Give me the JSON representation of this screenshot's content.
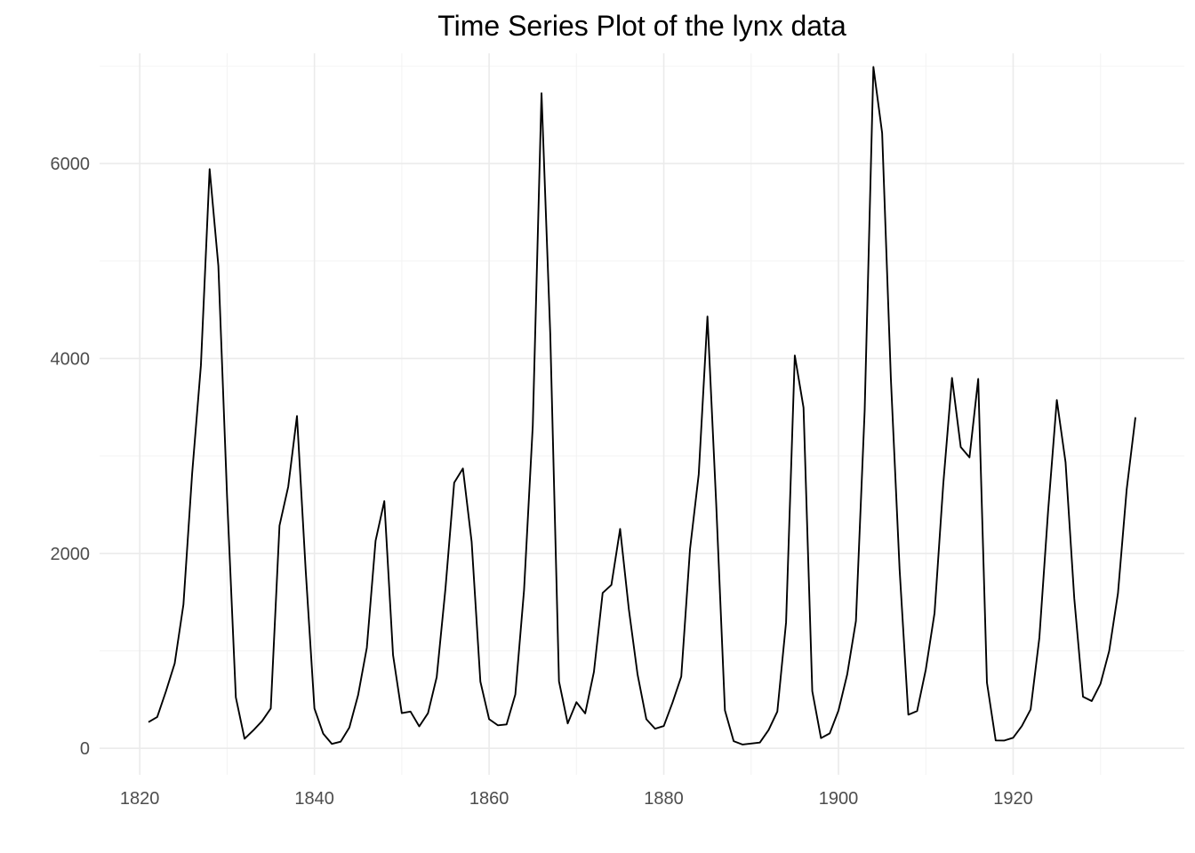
{
  "chart_data": {
    "type": "line",
    "title": "Time Series Plot of the lynx data",
    "xlabel": "",
    "ylabel": "",
    "xlim": [
      1815.4,
      1939.6
    ],
    "ylim": [
      -272,
      7131
    ],
    "x_ticks": [
      1820,
      1840,
      1860,
      1880,
      1900,
      1920
    ],
    "x_tick_labels": [
      "1820",
      "1840",
      "1860",
      "1880",
      "1900",
      "1920"
    ],
    "y_ticks": [
      0,
      2000,
      4000,
      6000
    ],
    "y_tick_labels": [
      "0",
      "2000",
      "4000",
      "6000"
    ],
    "grid": true,
    "legend": "none",
    "line_color": "#000000",
    "series": [
      {
        "x_start": 1821,
        "x_step": 1,
        "values": [
          269,
          321,
          585,
          871,
          1475,
          2821,
          3928,
          5943,
          4950,
          2577,
          523,
          98,
          184,
          279,
          409,
          2285,
          2685,
          3409,
          1824,
          409,
          151,
          45,
          68,
          213,
          546,
          1033,
          2129,
          2536,
          957,
          361,
          377,
          225,
          360,
          731,
          1638,
          2725,
          2871,
          2119,
          684,
          299,
          236,
          245,
          552,
          1623,
          3311,
          6721,
          4254,
          687,
          255,
          473,
          358,
          784,
          1594,
          1676,
          2251,
          1426,
          756,
          299,
          201,
          229,
          469,
          736,
          2042,
          2811,
          4431,
          2511,
          389,
          73,
          39,
          49,
          59,
          188,
          377,
          1292,
          4031,
          3495,
          587,
          105,
          153,
          387,
          758,
          1307,
          3465,
          6991,
          6313,
          3794,
          1836,
          345,
          382,
          808,
          1388,
          2713,
          3800,
          3091,
          2985,
          3790,
          674,
          81,
          80,
          108,
          229,
          399,
          1132,
          2432,
          3574,
          2935,
          1537,
          529,
          485,
          662,
          1000,
          1590,
          2657,
          3396
        ]
      }
    ]
  }
}
